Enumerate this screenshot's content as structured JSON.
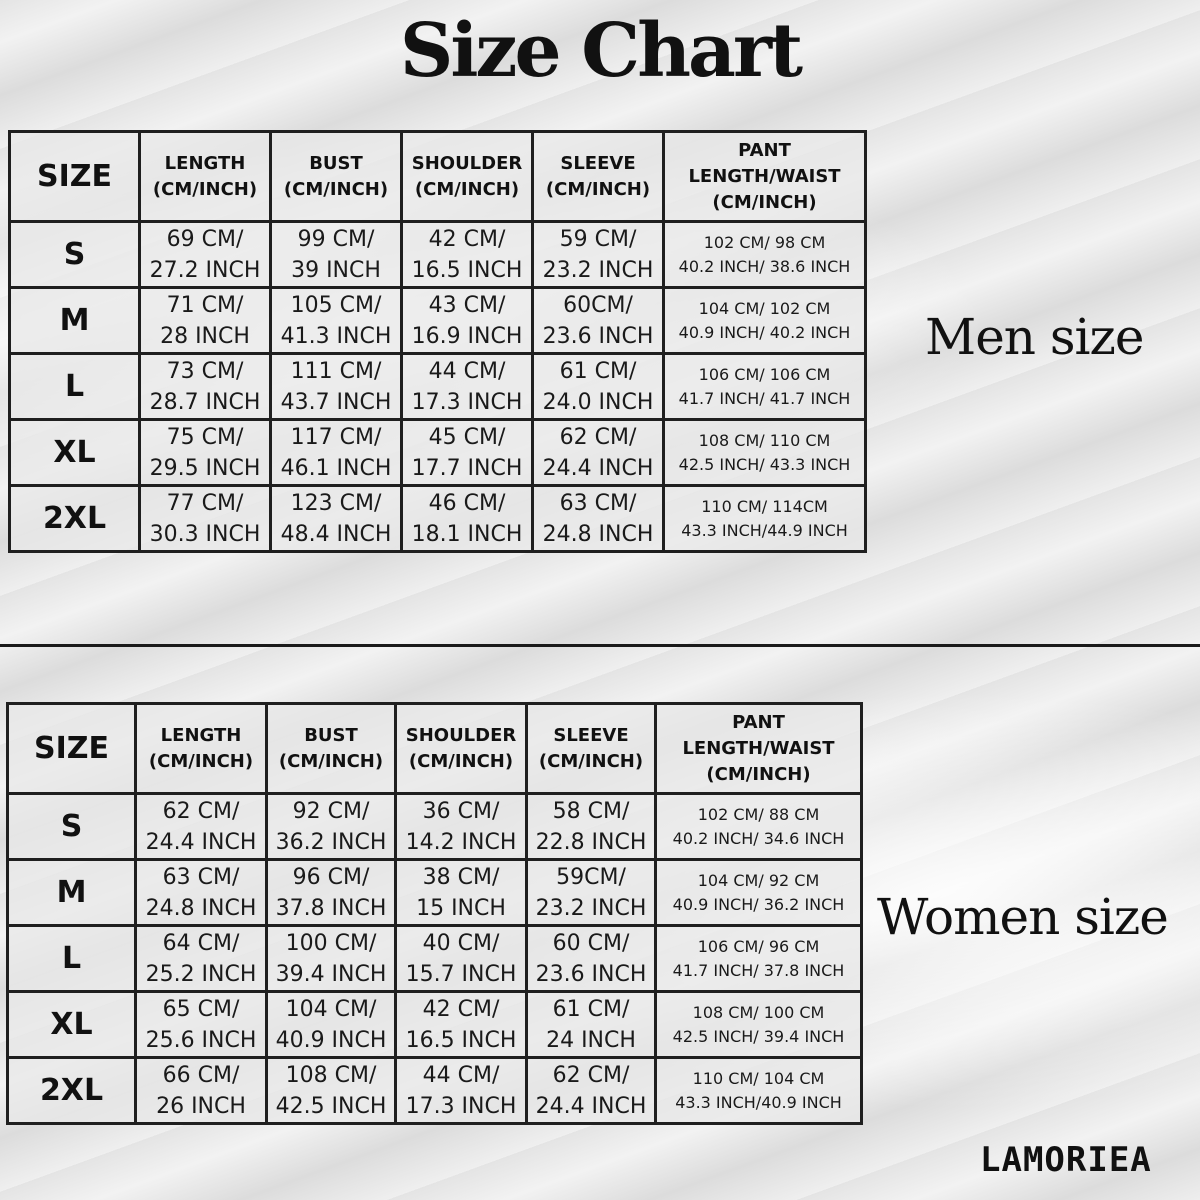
{
  "title": "Size Chart",
  "brand": "LAMORIEA",
  "headers": {
    "size": "SIZE",
    "length": [
      "LENGTH",
      "(CM/INCH)"
    ],
    "bust": [
      "BUST",
      "(CM/INCH)"
    ],
    "shoulder": [
      "SHOULDER",
      "(CM/INCH)"
    ],
    "sleeve": [
      "SLEEVE",
      "(CM/INCH)"
    ],
    "pant": [
      "PANT",
      "LENGTH/WAIST",
      "(CM/INCH)"
    ]
  },
  "men": {
    "label": "Men size",
    "rows": [
      {
        "size": "S",
        "length": [
          "69 CM/",
          "27.2 INCH"
        ],
        "bust": [
          "99 CM/",
          "39 INCH"
        ],
        "shoulder": [
          "42 CM/",
          "16.5 INCH"
        ],
        "sleeve": [
          "59 CM/",
          "23.2 INCH"
        ],
        "pant": [
          "102 CM/ 98 CM",
          "40.2 INCH/ 38.6 INCH"
        ]
      },
      {
        "size": "M",
        "length": [
          "71 CM/",
          "28 INCH"
        ],
        "bust": [
          "105 CM/",
          "41.3 INCH"
        ],
        "shoulder": [
          "43 CM/",
          "16.9 INCH"
        ],
        "sleeve": [
          "60CM/",
          "23.6 INCH"
        ],
        "pant": [
          "104 CM/ 102 CM",
          "40.9 INCH/ 40.2 INCH"
        ]
      },
      {
        "size": "L",
        "length": [
          "73 CM/",
          "28.7 INCH"
        ],
        "bust": [
          "111 CM/",
          "43.7 INCH"
        ],
        "shoulder": [
          "44 CM/",
          "17.3 INCH"
        ],
        "sleeve": [
          "61 CM/",
          "24.0 INCH"
        ],
        "pant": [
          "106 CM/ 106 CM",
          "41.7 INCH/ 41.7 INCH"
        ]
      },
      {
        "size": "XL",
        "length": [
          "75 CM/",
          "29.5 INCH"
        ],
        "bust": [
          "117 CM/",
          "46.1 INCH"
        ],
        "shoulder": [
          "45 CM/",
          "17.7 INCH"
        ],
        "sleeve": [
          "62 CM/",
          "24.4 INCH"
        ],
        "pant": [
          "108 CM/ 110 CM",
          "42.5 INCH/ 43.3 INCH"
        ]
      },
      {
        "size": "2XL",
        "length": [
          "77 CM/",
          "30.3 INCH"
        ],
        "bust": [
          "123 CM/",
          "48.4 INCH"
        ],
        "shoulder": [
          "46 CM/",
          "18.1 INCH"
        ],
        "sleeve": [
          "63 CM/",
          "24.8 INCH"
        ],
        "pant": [
          "110 CM/ 114CM",
          "43.3 INCH/44.9 INCH"
        ]
      }
    ]
  },
  "women": {
    "label": "Women size",
    "rows": [
      {
        "size": "S",
        "length": [
          "62 CM/",
          "24.4 INCH"
        ],
        "bust": [
          "92 CM/",
          "36.2 INCH"
        ],
        "shoulder": [
          "36 CM/",
          "14.2 INCH"
        ],
        "sleeve": [
          "58 CM/",
          "22.8 INCH"
        ],
        "pant": [
          "102 CM/ 88 CM",
          "40.2 INCH/ 34.6 INCH"
        ]
      },
      {
        "size": "M",
        "length": [
          "63 CM/",
          "24.8 INCH"
        ],
        "bust": [
          "96 CM/",
          "37.8 INCH"
        ],
        "shoulder": [
          "38 CM/",
          "15 INCH"
        ],
        "sleeve": [
          "59CM/",
          "23.2 INCH"
        ],
        "pant": [
          "104 CM/ 92 CM",
          "40.9 INCH/ 36.2 INCH"
        ]
      },
      {
        "size": "L",
        "length": [
          "64 CM/",
          "25.2 INCH"
        ],
        "bust": [
          "100 CM/",
          "39.4 INCH"
        ],
        "shoulder": [
          "40 CM/",
          "15.7 INCH"
        ],
        "sleeve": [
          "60 CM/",
          "23.6 INCH"
        ],
        "pant": [
          "106 CM/ 96 CM",
          "41.7 INCH/ 37.8 INCH"
        ]
      },
      {
        "size": "XL",
        "length": [
          "65 CM/",
          "25.6 INCH"
        ],
        "bust": [
          "104 CM/",
          "40.9 INCH"
        ],
        "shoulder": [
          "42 CM/",
          "16.5 INCH"
        ],
        "sleeve": [
          "61 CM/",
          "24 INCH"
        ],
        "pant": [
          "108 CM/ 100 CM",
          "42.5 INCH/ 39.4 INCH"
        ]
      },
      {
        "size": "2XL",
        "length": [
          "66 CM/",
          "26 INCH"
        ],
        "bust": [
          "108 CM/",
          "42.5 INCH"
        ],
        "shoulder": [
          "44 CM/",
          "17.3 INCH"
        ],
        "sleeve": [
          "62 CM/",
          "24.4 INCH"
        ],
        "pant": [
          "110 CM/ 104 CM",
          "43.3 INCH/40.9 INCH"
        ]
      }
    ]
  }
}
